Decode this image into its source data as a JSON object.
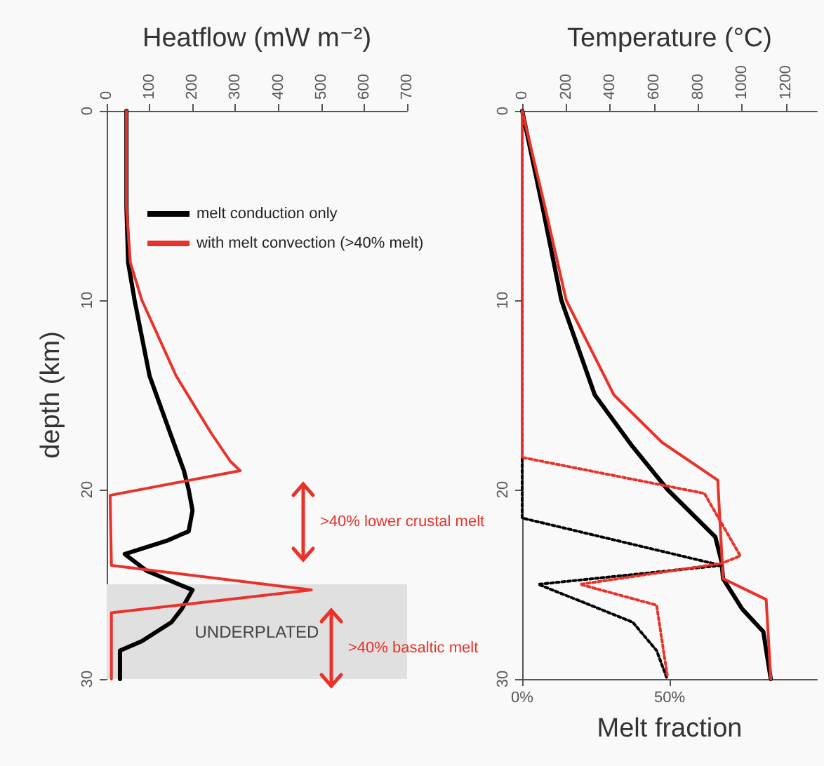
{
  "chart_data": [
    {
      "type": "line",
      "xlabel": "Heatflow (mW m⁻²)",
      "ylabel": "depth (km)",
      "xlim": [
        0,
        700
      ],
      "xticks": [
        0,
        100,
        200,
        300,
        400,
        500,
        600,
        700
      ],
      "ylim": [
        30,
        0
      ],
      "yticks": [
        0,
        10,
        20,
        30
      ],
      "legend": "top",
      "grid": false,
      "series": [
        {
          "name": "melt conduction only",
          "color": "#000000",
          "x": [
            46,
            46,
            50,
            65,
            100,
            151,
            180,
            191,
            200,
            191,
            140,
            42,
            94,
            200,
            175,
            151,
            82,
            31,
            31
          ],
          "values": [
            0,
            5,
            8,
            10,
            14,
            17.2,
            19,
            20,
            21.1,
            22.2,
            22.7,
            23.4,
            24.3,
            25.3,
            26.3,
            27,
            28,
            28.5,
            30
          ]
        },
        {
          "name": "with melt convection (>40% melt)",
          "color": "#e8322a",
          "x": [
            46,
            46,
            55,
            82,
            162,
            243,
            288,
            311,
            8,
            11,
            477,
            11,
            11
          ],
          "values": [
            0,
            5,
            8,
            10,
            14,
            17,
            18.5,
            19,
            20.3,
            24,
            25.3,
            26.5,
            30
          ]
        }
      ],
      "bands": [
        {
          "axis": "y",
          "from": 25,
          "to": 30,
          "label": "UNDERPLATED",
          "color": "#e0e0e0"
        }
      ],
      "annotations": [
        ">40% lower crustal melt",
        ">40% basaltic melt"
      ]
    },
    {
      "type": "line",
      "xlabel": "Melt fraction",
      "x2label": "Temperature (°C)",
      "xlim": [
        0,
        100
      ],
      "xticks": [
        {
          "value": 0,
          "label": "0%"
        },
        {
          "value": 50,
          "label": "50%"
        }
      ],
      "x2lim": [
        0,
        1340
      ],
      "x2ticks": [
        0,
        200,
        400,
        600,
        800,
        1000,
        1200
      ],
      "ylim": [
        30,
        0
      ],
      "yticks": [
        0,
        10,
        20,
        30
      ],
      "grid": false,
      "series": [
        {
          "color": "#000000",
          "axis": "x2",
          "line_style": "solid",
          "x": [
            0,
            91,
            178,
            330,
            500,
            661,
            878,
            906,
            913,
            1000,
            1096,
            1130
          ],
          "values": [
            0,
            5,
            10,
            15,
            17.7,
            20,
            22.5,
            23.8,
            24.7,
            26.3,
            27.5,
            30
          ]
        },
        {
          "color": "#e8322a",
          "axis": "x2",
          "line_style": "solid",
          "x": [
            0,
            102,
            200,
            417,
            635,
            889,
            913,
            1109,
            1130
          ],
          "values": [
            0,
            5,
            10,
            15,
            17.5,
            19.5,
            24.7,
            25.8,
            30
          ]
        },
        {
          "color": "#000000",
          "line_style": "dotted",
          "x": [
            0,
            0,
            67.5,
            5.5,
            37.5,
            45.6,
            49.2
          ],
          "values": [
            0,
            21.5,
            24,
            25,
            27,
            28.5,
            30
          ]
        },
        {
          "color": "#e8322a",
          "line_style": "dotted",
          "x": [
            0,
            0,
            61.8,
            74,
            67.5,
            19.7,
            45.6,
            49.2
          ],
          "values": [
            0,
            18.3,
            20.2,
            23.5,
            23.9,
            25,
            26.1,
            29.8
          ]
        }
      ]
    }
  ]
}
